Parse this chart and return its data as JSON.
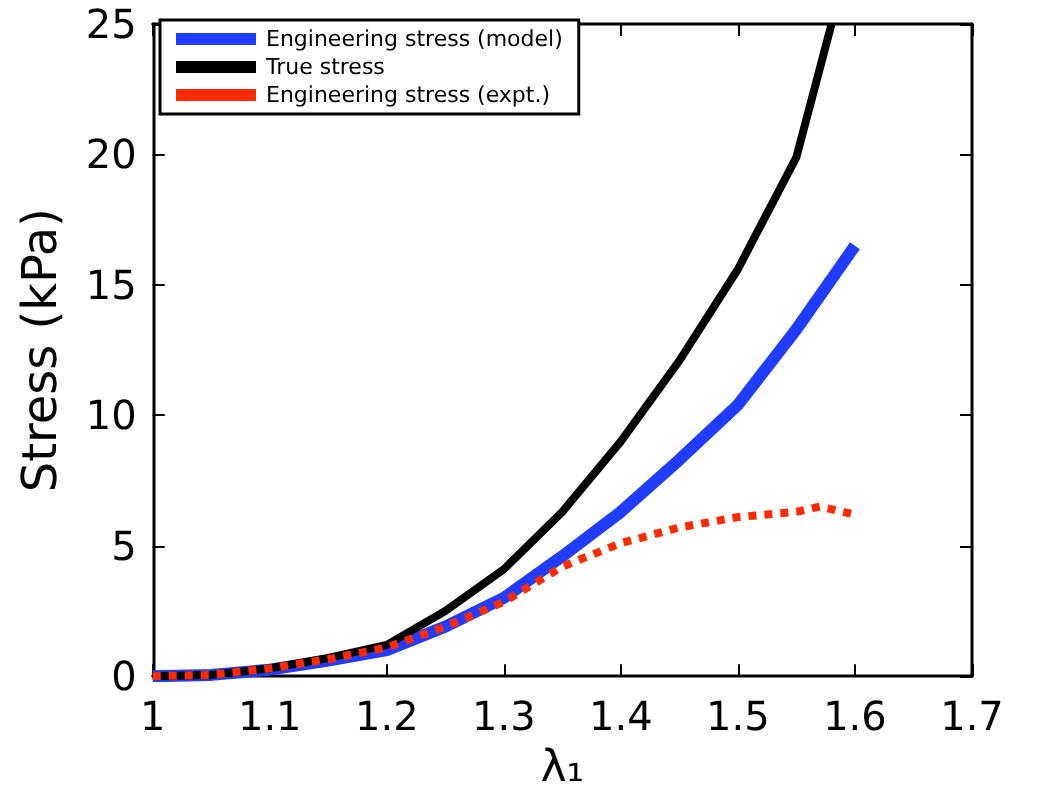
{
  "chart_data": {
    "type": "line",
    "xlabel": "λ₁",
    "ylabel": "Stress (kPa)",
    "xlim": [
      1,
      1.7
    ],
    "xticks": [
      1,
      1.1,
      1.2,
      1.3,
      1.4,
      1.5,
      1.6,
      1.7
    ],
    "ylim": [
      0,
      25
    ],
    "yticks": [
      0,
      5,
      10,
      15,
      20,
      25
    ],
    "grid": false,
    "legend": "top left",
    "marker": "none",
    "x": [
      1,
      1.05,
      1.1,
      1.15,
      1.2,
      1.25,
      1.3,
      1.35,
      1.4,
      1.45,
      1.5,
      1.55,
      1.6
    ],
    "series": [
      {
        "name": "Engineering stress (model)",
        "color": "#1f3cff",
        "line_style": "solid",
        "values": [
          0,
          0.05,
          0.25,
          0.6,
          1.0,
          1.9,
          3.0,
          4.6,
          6.3,
          8.3,
          10.4,
          13.3,
          16.5
        ]
      },
      {
        "name": "True stress",
        "color": "#000000",
        "line_style": "solid",
        "x": [
          1,
          1.05,
          1.1,
          1.15,
          1.2,
          1.25,
          1.3,
          1.35,
          1.4,
          1.45,
          1.5,
          1.55,
          1.58
        ],
        "values": [
          0,
          0.05,
          0.3,
          0.7,
          1.2,
          2.5,
          4.1,
          6.3,
          9.0,
          12.1,
          15.6,
          19.9,
          25
        ]
      },
      {
        "name": "Engineering stress (expt.)",
        "color": "#ff2a00",
        "line_style": "dotted",
        "x": [
          1,
          1.05,
          1.1,
          1.15,
          1.2,
          1.25,
          1.3,
          1.35,
          1.4,
          1.45,
          1.5,
          1.55,
          1.57,
          1.6
        ],
        "values": [
          0,
          0.05,
          0.3,
          0.65,
          1.1,
          1.9,
          2.85,
          4.2,
          5.1,
          5.7,
          6.1,
          6.3,
          6.5,
          6.2
        ]
      }
    ]
  }
}
